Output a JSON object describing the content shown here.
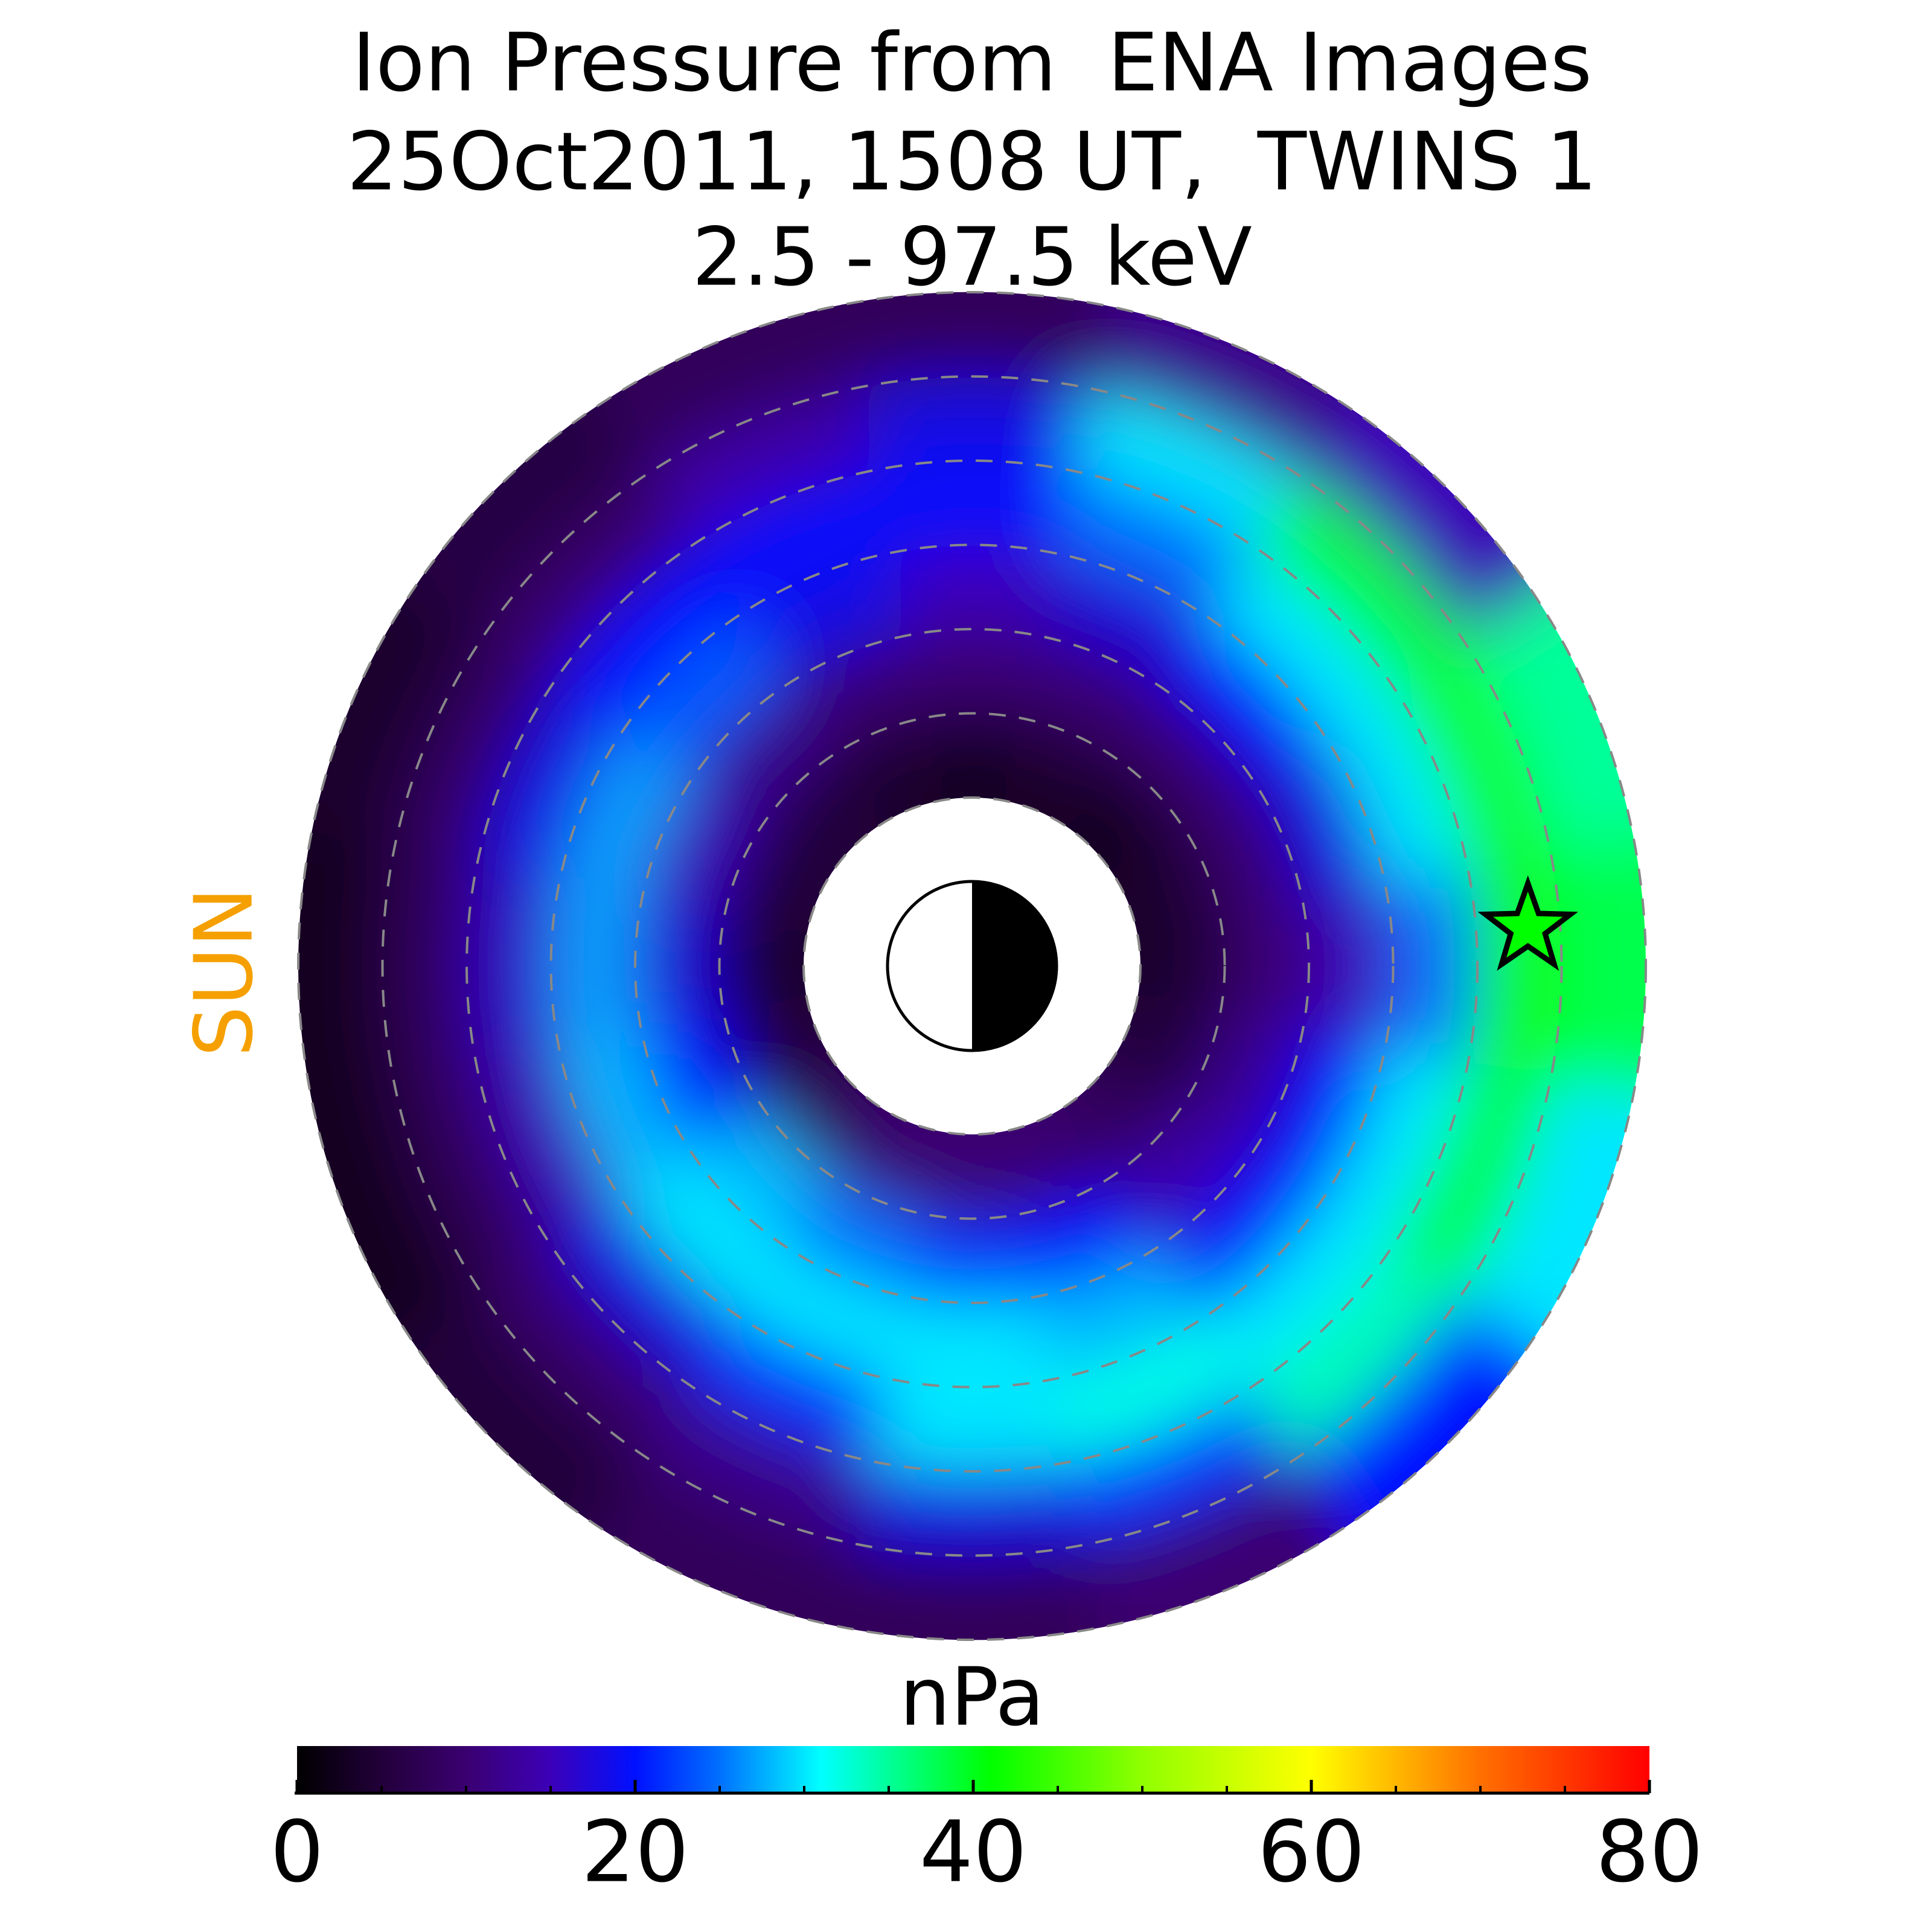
{
  "chart_data": {
    "type": "polar_heatmap",
    "title": [
      "Ion Pressure from  ENA Images",
      "25Oct2011, 1508 UT,  TWINS 1",
      "2.5 - 97.5 keV"
    ],
    "annotation": "SUN",
    "r_edges": [
      2,
      3,
      4,
      5,
      6,
      7,
      8
    ],
    "theta_edges": [
      -11.25,
      11.25,
      33.75,
      56.25,
      78.75,
      101.25,
      123.75,
      146.25,
      168.75,
      191.25,
      213.75,
      236.25,
      258.75,
      281.25,
      303.75,
      326.25,
      348.75
    ],
    "values": [
      [
        4,
        10,
        15,
        25,
        42,
        38
      ],
      [
        4,
        10,
        18,
        30,
        42,
        35
      ],
      [
        3,
        10,
        20,
        30,
        40,
        15
      ],
      [
        4,
        10,
        17,
        25,
        30,
        12
      ],
      [
        3,
        10,
        15,
        20,
        18,
        8
      ],
      [
        4,
        10,
        18,
        20,
        14,
        8
      ],
      [
        5,
        12,
        24,
        20,
        10,
        6
      ],
      [
        5,
        15,
        27,
        18,
        9,
        4
      ],
      [
        4,
        17,
        27,
        16,
        8,
        3
      ],
      [
        5,
        20,
        28,
        15,
        8,
        3
      ],
      [
        8,
        28,
        30,
        18,
        10,
        5
      ],
      [
        10,
        25,
        30,
        22,
        12,
        8
      ],
      [
        10,
        22,
        30,
        30,
        18,
        8
      ],
      [
        10,
        20,
        28,
        32,
        22,
        10
      ],
      [
        8,
        14,
        20,
        30,
        34,
        20
      ],
      [
        5,
        12,
        20,
        30,
        40,
        30
      ]
    ],
    "grid": true,
    "spacecraft": {
      "x": 6.6,
      "y": 0.45
    },
    "colorbar_label": "nPa",
    "clim": [
      0,
      80
    ],
    "cticks": [
      0,
      20,
      40,
      60,
      80
    ],
    "cticks_minor": [
      5,
      10,
      15,
      25,
      30,
      35,
      45,
      50,
      55,
      65,
      70,
      75
    ],
    "colormap": [
      {
        "value": 0,
        "color": "#000000"
      },
      {
        "value": 5,
        "color": "#22003a"
      },
      {
        "value": 10,
        "color": "#3a0070"
      },
      {
        "value": 15,
        "color": "#3c00b8"
      },
      {
        "value": 20,
        "color": "#0010ff"
      },
      {
        "value": 25,
        "color": "#0070ff"
      },
      {
        "value": 31,
        "color": "#00ffff"
      },
      {
        "value": 41,
        "color": "#00ff00"
      },
      {
        "value": 50,
        "color": "#90ff00"
      },
      {
        "value": 60,
        "color": "#ffff00"
      },
      {
        "value": 70,
        "color": "#ff7000"
      },
      {
        "value": 80,
        "color": "#ff0000"
      }
    ]
  }
}
